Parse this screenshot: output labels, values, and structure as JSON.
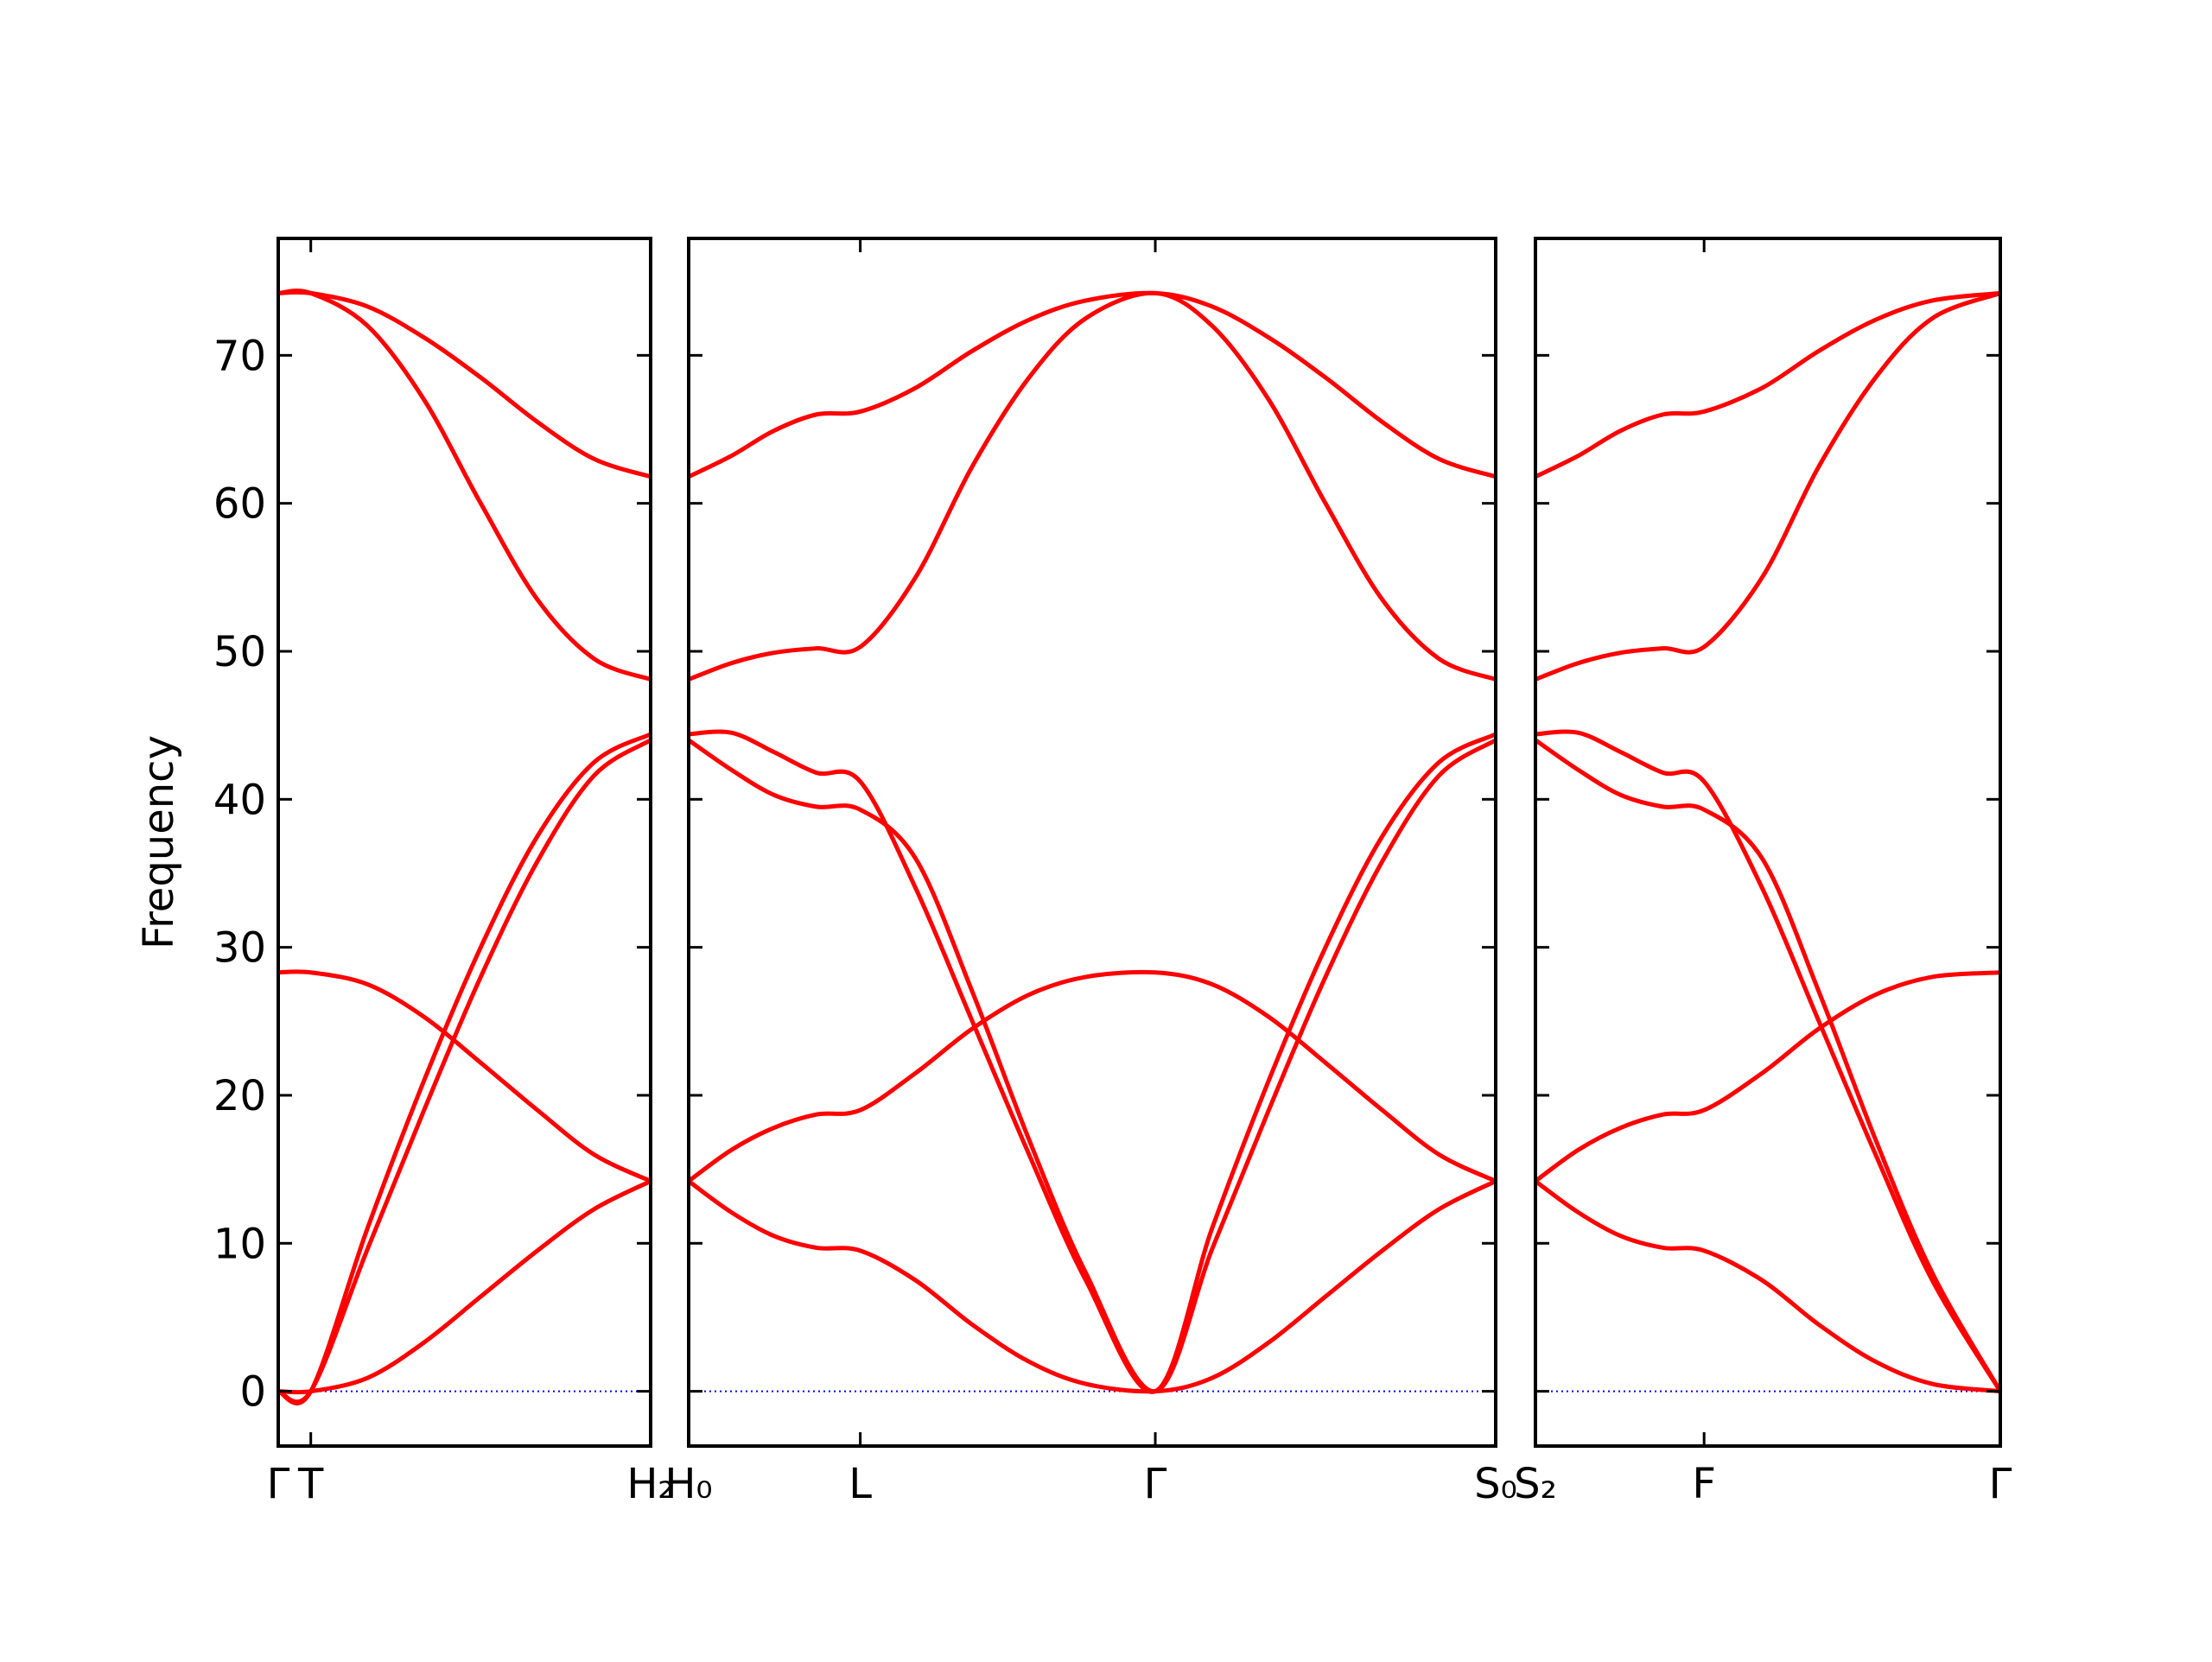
{
  "chart_data": [
    {
      "type": "line",
      "ylabel": "Frequency",
      "show_ytick_labels": true,
      "x": [
        0,
        0.23,
        0.63,
        1.03,
        1.43,
        1.83,
        2.23,
        2.63
      ],
      "xlim": [
        0,
        2.63
      ],
      "xticks": [
        {
          "value": 0,
          "label": "Γ"
        },
        {
          "value": 0.23,
          "label": "T"
        },
        {
          "value": 2.63,
          "label": "H₂"
        }
      ],
      "ylim": [
        -3.7,
        77.9
      ],
      "yticks": [
        0,
        10,
        20,
        30,
        40,
        50,
        60,
        70
      ],
      "zero_line": {
        "value": 0,
        "color": "#0000ff"
      },
      "series": [
        {
          "color": "#ff0000",
          "values": [
            0,
            0,
            0.9,
            3.3,
            6.4,
            9.5,
            12.3,
            14.2
          ]
        },
        {
          "color": "#ff0000",
          "values": [
            0,
            0,
            11,
            21,
            30,
            37.5,
            42.5,
            44.4
          ]
        },
        {
          "color": "#ff0000",
          "values": [
            0,
            0,
            9.6,
            19,
            28,
            35.8,
            41.6,
            44.0
          ]
        },
        {
          "color": "#ff0000",
          "values": [
            28.3,
            28.3,
            27.5,
            25.3,
            22.2,
            19,
            16,
            14.2
          ]
        },
        {
          "color": "#ff0000",
          "values": [
            74.2,
            74.2,
            73.3,
            71.2,
            68.5,
            65.5,
            63,
            61.8
          ]
        },
        {
          "color": "#ff0000",
          "values": [
            74.2,
            74.2,
            72,
            67,
            60,
            53.5,
            49.5,
            48.1
          ]
        }
      ]
    },
    {
      "type": "line",
      "show_ytick_labels": false,
      "x": [
        0,
        0.3,
        0.6,
        0.9,
        1.21,
        1.6,
        2.0,
        2.4,
        2.8,
        3.29,
        3.69,
        4.09,
        4.49,
        4.89,
        5.29,
        5.69
      ],
      "xlim": [
        0,
        5.69
      ],
      "xticks": [
        {
          "value": 0,
          "label": "H₀"
        },
        {
          "value": 1.21,
          "label": "L"
        },
        {
          "value": 3.29,
          "label": "Γ"
        },
        {
          "value": 5.69,
          "label": "S₀"
        }
      ],
      "ylim": [
        -3.7,
        77.9
      ],
      "yticks": [
        0,
        10,
        20,
        30,
        40,
        50,
        60,
        70
      ],
      "zero_line": {
        "value": 0,
        "color": "#0000ff"
      },
      "series": [
        {
          "color": "#ff0000",
          "values": [
            61.8,
            63.2,
            64.9,
            66.0,
            66.2,
            67.8,
            70.3,
            72.4,
            73.7,
            74.2,
            73.3,
            71.2,
            68.5,
            65.5,
            63,
            61.8
          ]
        },
        {
          "color": "#ff0000",
          "values": [
            48.1,
            49.2,
            49.9,
            50.2,
            50.3,
            55,
            62.5,
            68.5,
            72.5,
            74.2,
            72,
            67,
            60,
            53.5,
            49.5,
            48.1
          ]
        },
        {
          "color": "#ff0000",
          "values": [
            44.4,
            44.5,
            43.2,
            41.8,
            41.2,
            34,
            25,
            16,
            7.5,
            0,
            11,
            21,
            30,
            37.5,
            42.5,
            44.4
          ]
        },
        {
          "color": "#ff0000",
          "values": [
            44.0,
            42.0,
            40.3,
            39.5,
            39.3,
            36,
            27,
            17,
            8,
            0,
            9.6,
            19,
            28,
            35.8,
            41.6,
            44.0
          ]
        },
        {
          "color": "#ff0000",
          "values": [
            14.2,
            16.3,
            17.8,
            18.7,
            19,
            21.5,
            24.5,
            26.8,
            28,
            28.3,
            27.5,
            25.3,
            22.2,
            19,
            16,
            14.2
          ]
        },
        {
          "color": "#ff0000",
          "values": [
            14.2,
            12.1,
            10.5,
            9.7,
            9.5,
            7.5,
            4.5,
            2,
            0.5,
            0,
            0.9,
            3.3,
            6.4,
            9.5,
            12.3,
            14.2
          ]
        }
      ]
    },
    {
      "type": "line",
      "show_ytick_labels": false,
      "x": [
        0,
        0.3,
        0.6,
        0.9,
        1.19,
        1.6,
        2.0,
        2.4,
        2.8,
        3.28
      ],
      "xlim": [
        0,
        3.28
      ],
      "xticks": [
        {
          "value": 0,
          "label": "S₂"
        },
        {
          "value": 1.19,
          "label": "F"
        },
        {
          "value": 3.28,
          "label": "Γ"
        }
      ],
      "ylim": [
        -3.7,
        77.9
      ],
      "yticks": [
        0,
        10,
        20,
        30,
        40,
        50,
        60,
        70
      ],
      "zero_line": {
        "value": 0,
        "color": "#0000ff"
      },
      "series": [
        {
          "color": "#ff0000",
          "values": [
            61.8,
            63.2,
            64.9,
            66.0,
            66.2,
            67.8,
            70.3,
            72.4,
            73.7,
            74.2
          ]
        },
        {
          "color": "#ff0000",
          "values": [
            48.1,
            49.2,
            49.9,
            50.2,
            50.3,
            55,
            62.5,
            68.5,
            72.5,
            74.2
          ]
        },
        {
          "color": "#ff0000",
          "values": [
            44.4,
            44.5,
            43.2,
            41.8,
            41.2,
            34,
            25,
            16,
            7.5,
            0
          ]
        },
        {
          "color": "#ff0000",
          "values": [
            44.0,
            42.0,
            40.3,
            39.5,
            39.3,
            36,
            27,
            17,
            8,
            0
          ]
        },
        {
          "color": "#ff0000",
          "values": [
            14.2,
            16.3,
            17.8,
            18.7,
            19,
            21.5,
            24.5,
            26.8,
            28,
            28.3
          ]
        },
        {
          "color": "#ff0000",
          "values": [
            14.2,
            12.1,
            10.5,
            9.7,
            9.5,
            7.5,
            4.5,
            2,
            0.5,
            0
          ]
        }
      ]
    }
  ]
}
